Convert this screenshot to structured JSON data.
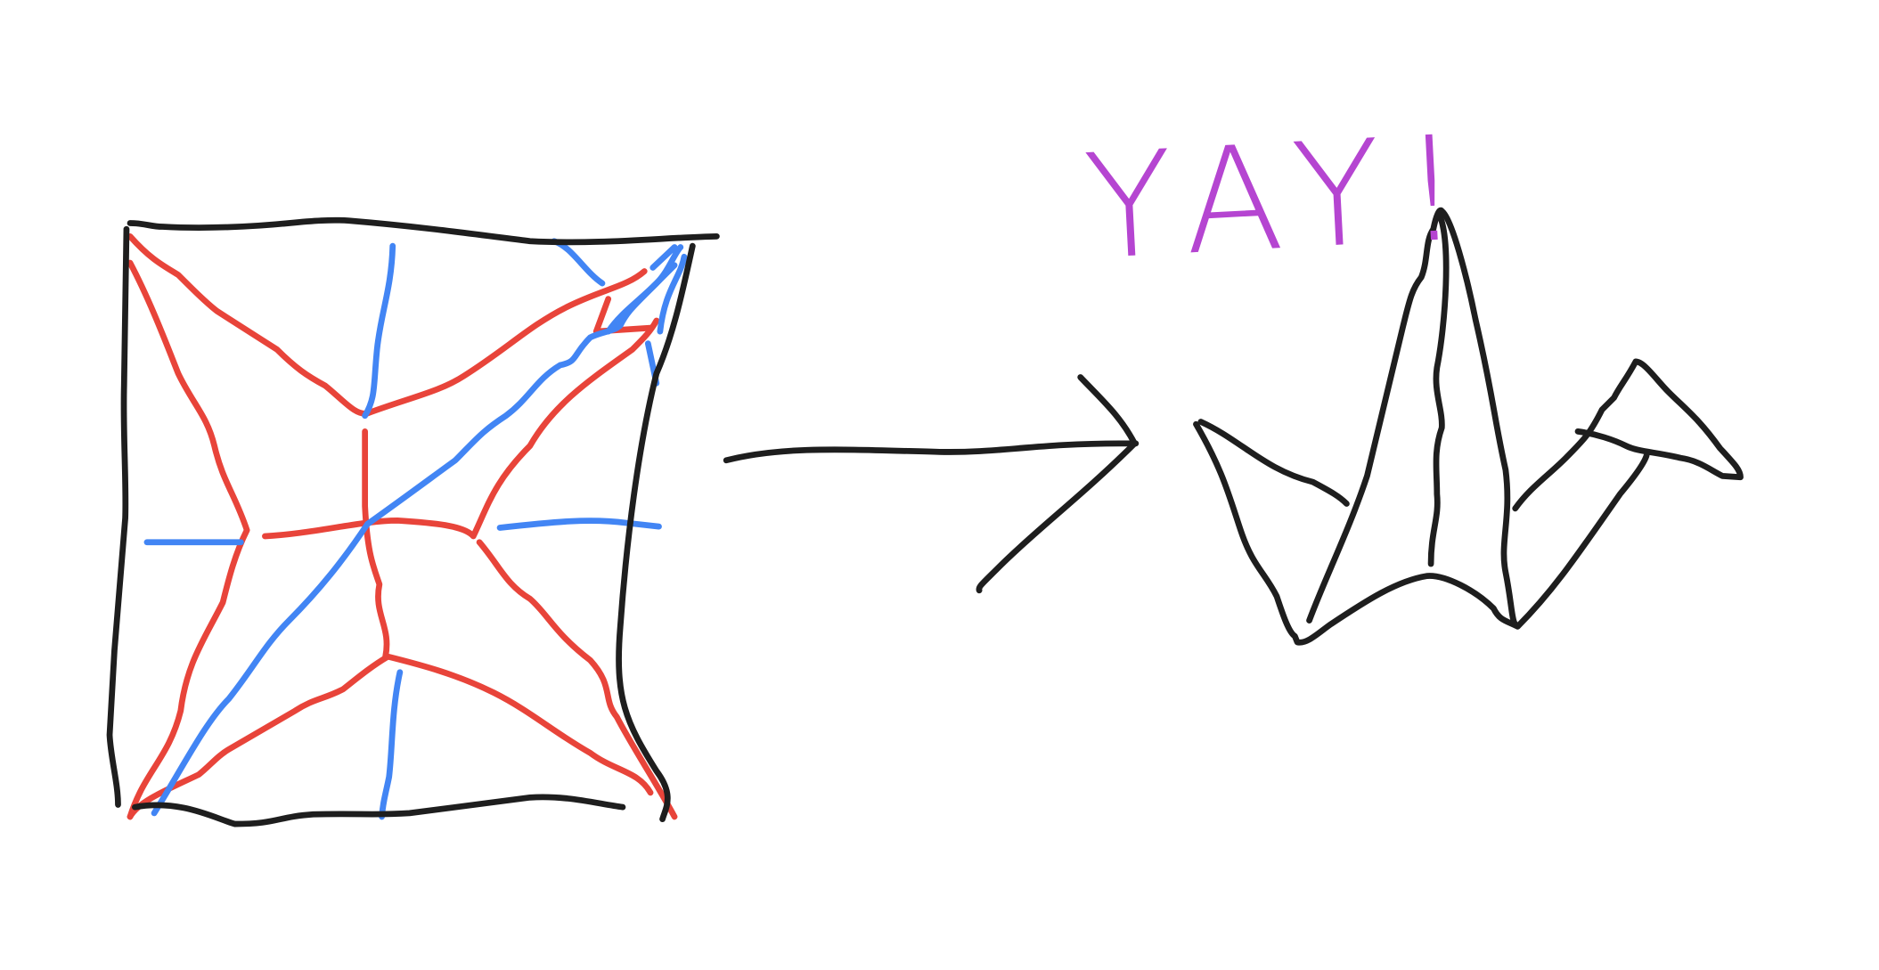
{
  "annotation": "YAY!"
}
